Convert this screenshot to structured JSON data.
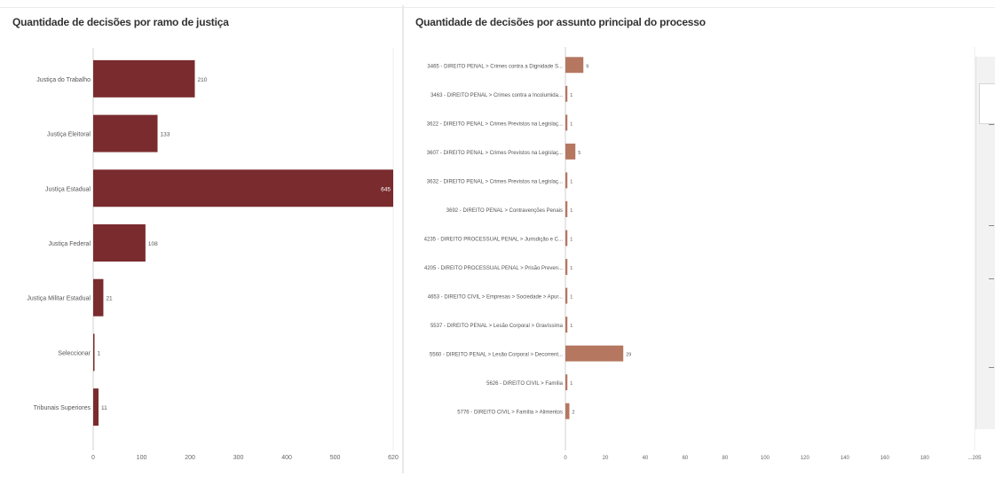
{
  "chart_data": [
    {
      "type": "bar",
      "orientation": "horizontal",
      "title": "Quantidade de decisões por ramo de justiça",
      "categories": [
        "Justiça do Trabalho",
        "Justiça Eleitoral",
        "Justiça Estadual",
        "Justiça Federal",
        "Justiça Militar Estadual",
        "Seleccionar",
        "Tribunais Superiores"
      ],
      "values": [
        210,
        133,
        645,
        108,
        21,
        1,
        11
      ],
      "value_labels": [
        "210",
        "133",
        "645",
        "108",
        "21",
        "1",
        "11"
      ],
      "xlim": [
        0,
        620
      ],
      "xticks": [
        "0",
        "100",
        "200",
        "300",
        "400",
        "500",
        "620"
      ],
      "xtick_values": [
        0,
        100,
        200,
        300,
        400,
        500,
        620
      ],
      "color": "#7a2b2e"
    },
    {
      "type": "bar",
      "orientation": "horizontal",
      "title": "Quantidade de decisões por assunto principal do processo",
      "categories": [
        "3465 - DIREITO PENAL > Crimes contra a Dignidade S...",
        "3463 - DIREITO PENAL > Crimes contra a Incolumida...",
        "3622 - DIREITO PENAL > Crimes Previstos na Legislaç...",
        "3607 - DIREITO PENAL > Crimes Previstos na Legislaç...",
        "3632 - DIREITO PENAL > Crimes Previstos na Legislaç...",
        "3692 - DIREITO PENAL > Contravenções Penais",
        "4235 - DIREITO PROCESSUAL PENAL > Jurisdição e C...",
        "4205 - DIREITO PROCESSUAL PENAL > Prisão Preven...",
        "4653 - DIREITO CIVIL > Empresas > Sociedade > Apur...",
        "5537 - DIREITO PENAL > Lesão Corporal > Gravíssima",
        "5560 - DIREITO PENAL > Lesão Corporal > Decorrent...",
        "5626 - DIREITO CIVIL > Família",
        "5776 - DIREITO CIVIL > Família > Alimentos"
      ],
      "values": [
        9,
        1,
        1,
        5,
        1,
        1,
        1,
        1,
        1,
        1,
        29,
        1,
        2
      ],
      "value_labels": [
        "9",
        "1",
        "1",
        "5",
        "1",
        "1",
        "1",
        "1",
        "1",
        "1",
        "29",
        "1",
        "2"
      ],
      "xlim": [
        0,
        205
      ],
      "xticks": [
        "0",
        "20",
        "40",
        "60",
        "80",
        "100",
        "120",
        "140",
        "160",
        "180",
        "...205"
      ],
      "xtick_values": [
        0,
        20,
        40,
        60,
        80,
        100,
        120,
        140,
        160,
        180,
        205
      ],
      "color": "#b5775f"
    }
  ]
}
